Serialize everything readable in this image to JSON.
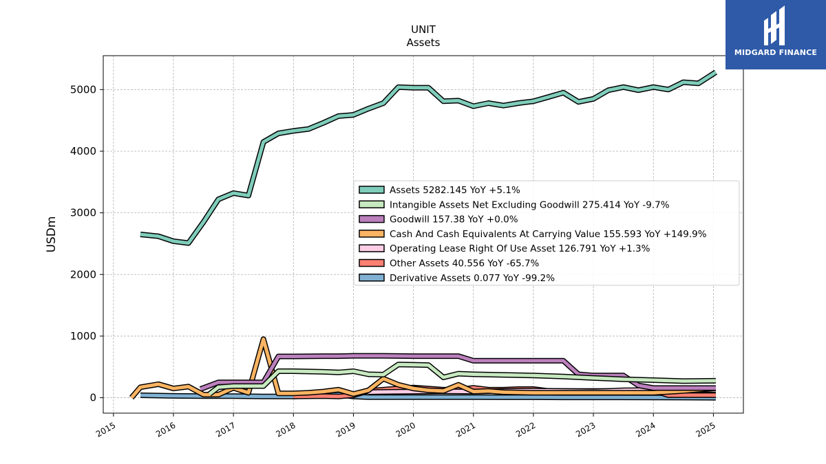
{
  "brand": {
    "name": "MIDGARD FINANCE",
    "bg": "#2e5aa8"
  },
  "chart_data": {
    "type": "line",
    "title": "UNIT",
    "subtitle": "Assets",
    "ylabel": "USDm",
    "xlabel": "",
    "ylim": [
      -250,
      5550
    ],
    "xlim": [
      2014.83,
      2025.5
    ],
    "yticks": [
      0,
      1000,
      2000,
      3000,
      4000,
      5000
    ],
    "xticks": [
      2015,
      2016,
      2017,
      2018,
      2019,
      2020,
      2021,
      2022,
      2023,
      2024,
      2025
    ],
    "grid": true,
    "legend_position": "center-right",
    "series": [
      {
        "name": "Assets",
        "legend": "Assets  5282.145 YoY +5.1%",
        "color": "#7fcdbb",
        "x": [
          2015.45,
          2015.75,
          2016.0,
          2016.25,
          2016.5,
          2016.75,
          2017.0,
          2017.25,
          2017.5,
          2017.75,
          2018.0,
          2018.25,
          2018.5,
          2018.75,
          2019.0,
          2019.25,
          2019.5,
          2019.75,
          2020.0,
          2020.25,
          2020.5,
          2020.75,
          2021.0,
          2021.25,
          2021.5,
          2021.75,
          2022.0,
          2022.25,
          2022.5,
          2022.75,
          2023.0,
          2023.25,
          2023.5,
          2023.75,
          2024.0,
          2024.25,
          2024.5,
          2024.75,
          2025.04
        ],
        "y": [
          2650,
          2620,
          2540,
          2510,
          2850,
          3220,
          3320,
          3280,
          4150,
          4290,
          4330,
          4360,
          4460,
          4570,
          4590,
          4690,
          4780,
          5040,
          5030,
          5030,
          4810,
          4820,
          4730,
          4780,
          4740,
          4780,
          4810,
          4880,
          4950,
          4800,
          4850,
          4990,
          5040,
          4990,
          5040,
          5000,
          5120,
          5100,
          5282
        ]
      },
      {
        "name": "Intangible Assets Net Excluding Goodwill",
        "legend": "Intangible Assets Net Excluding Goodwill  275.414 YoY -9.7%",
        "color": "#c7e9c0",
        "x": [
          2016.6,
          2016.75,
          2017.0,
          2017.25,
          2017.5,
          2017.75,
          2018.0,
          2018.5,
          2018.75,
          2019.0,
          2019.25,
          2019.5,
          2019.75,
          2020.0,
          2020.25,
          2020.5,
          2020.75,
          2021.0,
          2021.5,
          2022.0,
          2022.5,
          2023.0,
          2023.5,
          2024.0,
          2024.5,
          2025.04
        ],
        "y": [
          60,
          170,
          190,
          190,
          190,
          430,
          430,
          420,
          410,
          430,
          380,
          375,
          540,
          535,
          530,
          330,
          390,
          380,
          370,
          360,
          345,
          320,
          300,
          285,
          270,
          275
        ]
      },
      {
        "name": "Goodwill",
        "legend": "Goodwill  157.38 YoY +0.0%",
        "color": "#bc80bd",
        "x": [
          2016.45,
          2016.75,
          2017.0,
          2017.25,
          2017.5,
          2017.75,
          2018.0,
          2018.5,
          2018.75,
          2019.0,
          2019.5,
          2020.0,
          2020.5,
          2020.75,
          2021.0,
          2021.5,
          2022.0,
          2022.5,
          2022.75,
          2023.0,
          2023.5,
          2023.75,
          2024.0,
          2024.5,
          2025.04
        ],
        "y": [
          140,
          250,
          250,
          250,
          250,
          670,
          670,
          675,
          675,
          680,
          680,
          675,
          675,
          675,
          600,
          600,
          600,
          600,
          380,
          360,
          360,
          200,
          157,
          157,
          157
        ]
      },
      {
        "name": "Cash And Cash Equivalents At Carrying Value",
        "legend": "Cash And Cash Equivalents At Carrying Value  155.593 YoY +149.9%",
        "color": "#fdb462",
        "x": [
          2015.3,
          2015.45,
          2015.75,
          2016.0,
          2016.25,
          2016.5,
          2016.75,
          2017.0,
          2017.25,
          2017.5,
          2017.75,
          2018.0,
          2018.25,
          2018.5,
          2018.75,
          2019.0,
          2019.25,
          2019.5,
          2019.75,
          2020.0,
          2020.25,
          2020.5,
          2020.75,
          2021.0,
          2021.25,
          2021.5,
          2022.0,
          2022.5,
          2023.0,
          2023.5,
          2024.0,
          2024.5,
          2025.04
        ],
        "y": [
          0,
          170,
          220,
          150,
          180,
          50,
          50,
          160,
          80,
          950,
          70,
          70,
          80,
          100,
          130,
          60,
          120,
          310,
          210,
          150,
          120,
          110,
          210,
          100,
          110,
          90,
          80,
          80,
          80,
          80,
          80,
          110,
          156
        ]
      },
      {
        "name": "Operating Lease Right Of Use Asset",
        "legend": "Operating Lease Right Of Use Asset  126.791 YoY +1.3%",
        "color": "#fccde5",
        "x": [
          2019.25,
          2019.5,
          2020.0,
          2020.5,
          2021.0,
          2021.5,
          2022.0,
          2022.5,
          2023.0,
          2023.25,
          2023.5,
          2024.0,
          2024.5,
          2025.04
        ],
        "y": [
          90,
          95,
          100,
          105,
          100,
          110,
          115,
          110,
          105,
          110,
          120,
          125,
          125,
          127
        ]
      },
      {
        "name": "Other Assets",
        "legend": "Other Assets  40.556 YoY -65.7%",
        "color": "#fb8072",
        "x": [
          2018.0,
          2018.5,
          2018.75,
          2019.0,
          2019.25,
          2019.5,
          2019.75,
          2020.0,
          2020.5,
          2020.75,
          2021.0,
          2021.25,
          2021.5,
          2021.75,
          2022.0,
          2022.25,
          2022.5,
          2023.0,
          2023.5,
          2024.0,
          2024.25,
          2024.5,
          2025.04
        ],
        "y": [
          20,
          25,
          20,
          40,
          110,
          130,
          150,
          165,
          130,
          130,
          160,
          130,
          130,
          140,
          140,
          110,
          110,
          110,
          110,
          118,
          41,
          41,
          41
        ]
      },
      {
        "name": "Derivative Assets",
        "legend": "Derivative Assets  0.077 YoY -99.2%",
        "color": "#80b1d3",
        "x": [
          2015.45,
          2016.0,
          2016.5,
          2017.0,
          2017.5,
          2018.0,
          2018.5,
          2018.75,
          2019.0,
          2019.25,
          2019.5,
          2020.0,
          2020.5,
          2021.0,
          2021.5,
          2022.0,
          2022.5,
          2023.0,
          2023.5,
          2024.0,
          2024.5,
          2025.04
        ],
        "y": [
          40,
          30,
          25,
          25,
          20,
          20,
          40,
          50,
          20,
          10,
          10,
          10,
          10,
          10,
          8,
          8,
          5,
          5,
          5,
          3,
          2,
          0.077
        ]
      }
    ]
  }
}
